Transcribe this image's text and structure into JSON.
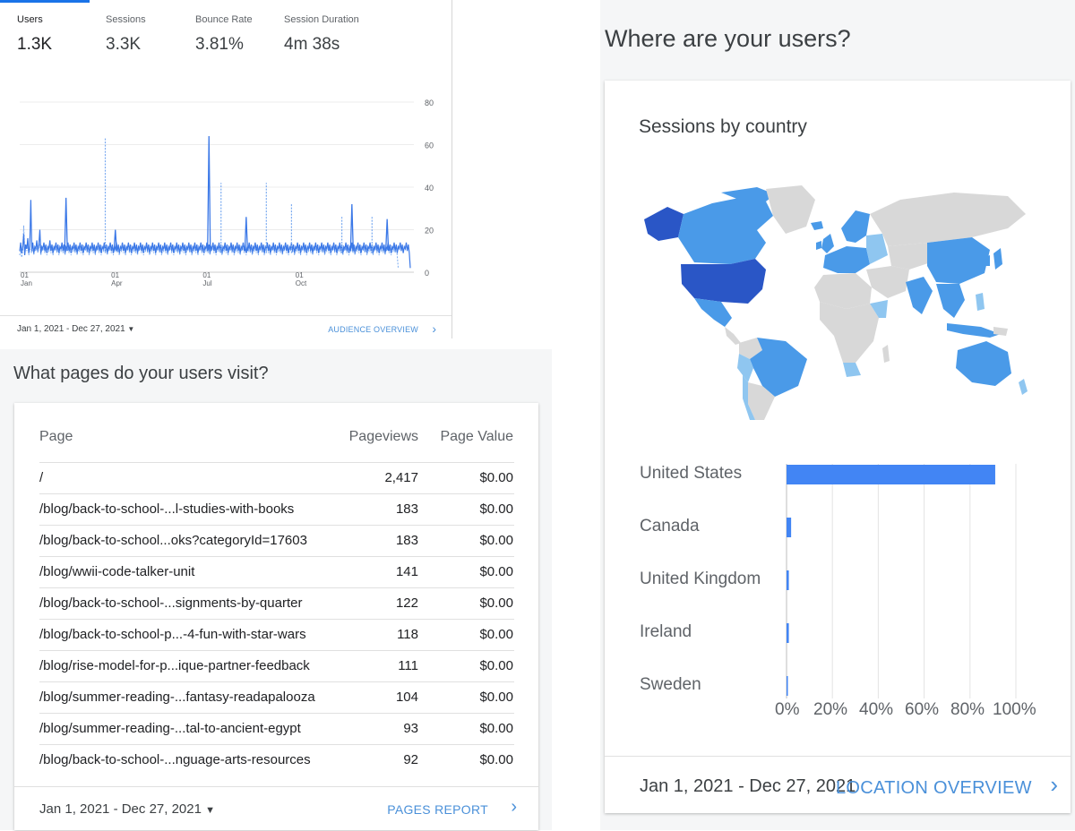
{
  "audience": {
    "metrics": [
      {
        "label": "Users",
        "value": "1.3K"
      },
      {
        "label": "Sessions",
        "value": "3.3K"
      },
      {
        "label": "Bounce Rate",
        "value": "3.81%"
      },
      {
        "label": "Session Duration",
        "value": "4m 38s"
      }
    ],
    "date_range": "Jan 1, 2021 - Dec 27, 2021",
    "link": "AUDIENCE OVERVIEW"
  },
  "pages": {
    "heading": "What pages do your users visit?",
    "columns": [
      "Page",
      "Pageviews",
      "Page Value"
    ],
    "rows": [
      {
        "page": "/",
        "pageviews": "2,417",
        "value": "$0.00"
      },
      {
        "page": "/blog/back-to-school-...l-studies-with-books",
        "pageviews": "183",
        "value": "$0.00"
      },
      {
        "page": "/blog/back-to-school...oks?categoryId=17603",
        "pageviews": "183",
        "value": "$0.00"
      },
      {
        "page": "/blog/wwii-code-talker-unit",
        "pageviews": "141",
        "value": "$0.00"
      },
      {
        "page": "/blog/back-to-school-...signments-by-quarter",
        "pageviews": "122",
        "value": "$0.00"
      },
      {
        "page": "/blog/back-to-school-p...-4-fun-with-star-wars",
        "pageviews": "118",
        "value": "$0.00"
      },
      {
        "page": "/blog/rise-model-for-p...ique-partner-feedback",
        "pageviews": "111",
        "value": "$0.00"
      },
      {
        "page": "/blog/summer-reading-...fantasy-readapalooza",
        "pageviews": "104",
        "value": "$0.00"
      },
      {
        "page": "/blog/summer-reading-...tal-to-ancient-egypt",
        "pageviews": "93",
        "value": "$0.00"
      },
      {
        "page": "/blog/back-to-school-...nguage-arts-resources",
        "pageviews": "92",
        "value": "$0.00"
      }
    ],
    "date_range": "Jan 1, 2021 - Dec 27, 2021",
    "link": "PAGES REPORT"
  },
  "location": {
    "heading": "Where are your users?",
    "card_title": "Sessions by country",
    "date_range": "Jan 1, 2021 - Dec 27, 2021",
    "link": "LOCATION OVERVIEW"
  },
  "colors": {
    "accent": "#1a73e8",
    "link": "#4a90d9",
    "bar": "#4285f4",
    "map_dark": "#2a56c6",
    "map_mid": "#4a9ae8",
    "map_light": "#8fc6f0",
    "map_none": "#d8d8d8"
  },
  "chart_data": [
    {
      "type": "line",
      "series": [
        {
          "values": [
            10,
            14,
            9,
            12,
            18,
            8,
            13,
            11,
            16,
            9,
            12,
            34,
            10,
            14,
            9,
            12,
            11,
            15,
            10,
            13,
            20,
            9,
            12,
            11,
            14,
            10,
            13,
            9,
            12,
            11,
            15,
            10,
            13,
            9,
            12,
            11,
            14,
            10,
            13,
            9,
            12,
            11,
            14,
            10,
            13,
            9,
            12,
            11,
            14,
            10,
            13,
            9,
            12,
            11,
            14,
            10,
            13,
            9,
            12,
            11,
            14,
            10,
            13,
            9,
            12,
            11,
            14,
            10,
            13,
            9,
            12,
            11,
            14,
            10,
            13,
            9,
            12,
            11,
            14,
            10,
            13,
            9,
            12,
            11,
            14,
            10,
            13,
            9,
            12,
            11,
            14,
            10,
            13,
            9,
            12,
            11,
            14,
            10,
            13,
            9,
            12,
            11,
            14,
            10,
            13,
            9,
            12,
            11,
            14,
            10,
            13,
            9,
            12,
            11,
            14,
            10,
            13,
            9,
            12,
            11,
            14,
            10,
            13,
            9,
            12,
            11,
            14,
            10,
            13,
            9,
            12,
            11,
            14,
            10,
            13,
            9,
            12,
            11,
            14,
            10,
            13,
            9,
            12,
            11,
            14,
            10,
            13,
            9,
            12,
            11,
            14,
            10,
            13,
            9,
            12,
            11,
            14,
            10,
            13,
            9,
            12,
            11,
            14,
            10,
            13,
            9,
            12,
            11,
            14,
            10,
            13,
            9,
            12,
            11,
            14,
            10,
            13,
            9,
            12,
            11,
            14,
            10,
            13,
            9,
            12,
            11,
            14,
            10,
            13,
            9,
            12,
            11,
            14,
            10,
            13,
            9,
            12,
            11,
            14,
            10,
            13,
            9,
            12,
            11,
            14,
            10,
            13,
            9,
            12,
            11,
            14,
            10,
            13,
            9,
            12,
            11,
            14,
            10,
            13,
            9,
            12,
            11,
            14,
            10,
            13,
            9,
            12,
            11,
            14,
            10,
            13,
            9,
            12,
            11,
            14,
            10,
            13,
            9,
            12,
            11,
            14,
            10,
            13,
            9,
            12,
            11,
            14,
            10,
            13,
            9,
            12,
            11,
            14,
            10,
            13,
            9,
            12,
            11,
            14,
            10,
            13,
            9,
            12,
            11,
            14,
            10,
            13,
            9,
            12,
            11,
            14,
            10,
            13,
            9,
            12,
            11,
            14,
            10,
            13,
            9,
            12,
            11,
            14,
            10,
            13,
            9,
            12,
            11,
            14,
            10,
            13,
            9,
            12,
            11,
            14,
            10,
            13,
            9,
            12,
            11,
            14,
            10,
            13,
            9,
            12,
            11,
            14,
            10,
            13,
            9,
            12,
            11,
            14,
            10,
            13,
            9,
            12,
            11,
            14,
            10,
            13,
            9,
            12,
            11,
            14,
            10,
            13,
            9,
            12,
            11,
            14,
            10,
            13,
            9,
            12,
            11,
            14,
            10,
            13,
            9,
            12,
            11,
            14,
            10,
            13,
            9,
            12,
            11,
            14,
            10,
            13,
            9,
            12,
            11,
            14,
            10,
            13,
            9,
            12,
            11,
            14,
            10,
            13,
            9,
            12,
            11,
            14,
            10,
            13,
            9,
            12,
            11,
            14,
            10,
            13,
            9,
            12,
            11,
            14,
            10,
            13,
            9,
            12,
            11,
            14,
            10,
            13,
            9,
            2
          ]
        },
        {
          "values": [
            8,
            11,
            7,
            10,
            22,
            9,
            12,
            10,
            14,
            8,
            11,
            10,
            9,
            13,
            8,
            11,
            10,
            14,
            9,
            12,
            13,
            8,
            11,
            10,
            13,
            9,
            12,
            8,
            11,
            10,
            14,
            9,
            12,
            8,
            11,
            10,
            13,
            9,
            12,
            8,
            11,
            10,
            13,
            9,
            12,
            8,
            11,
            10,
            13,
            9,
            12,
            8,
            11,
            10,
            13,
            9,
            12,
            8,
            11,
            10,
            13,
            9,
            12,
            8,
            11,
            10,
            13,
            9,
            12,
            8,
            11,
            10,
            13,
            9,
            12,
            8,
            11,
            10,
            13,
            9,
            12,
            8,
            11,
            10,
            13,
            9,
            12,
            8,
            11,
            10,
            13,
            9,
            12,
            8,
            11,
            10,
            13,
            9,
            12,
            8,
            11,
            10,
            13,
            9,
            12,
            8,
            11,
            10,
            13,
            9,
            12,
            8,
            11,
            10,
            13,
            9,
            12,
            8,
            11,
            10,
            13,
            9,
            12,
            8,
            11,
            10,
            13,
            9,
            12,
            8,
            11,
            10,
            13,
            9,
            12,
            8,
            11,
            10,
            13,
            9,
            12,
            8,
            11,
            10,
            13,
            9,
            12,
            8,
            11,
            10,
            13,
            9,
            12,
            8,
            11,
            10,
            13,
            9,
            12,
            8,
            11,
            10,
            13,
            9,
            12,
            8,
            11,
            10,
            13,
            9,
            12,
            8,
            11,
            10,
            13,
            9,
            12,
            8,
            11,
            10,
            13,
            9,
            12,
            8,
            11,
            10,
            13,
            9,
            12,
            8,
            11,
            10,
            13,
            9,
            12,
            8,
            11,
            10,
            13,
            9,
            12,
            8,
            11,
            10,
            13,
            9,
            12,
            8,
            11,
            10,
            13,
            9,
            12,
            8,
            11,
            10,
            13,
            9,
            12,
            8,
            11,
            10,
            13,
            9,
            12,
            8,
            11,
            10,
            13,
            9,
            12,
            8,
            11,
            10,
            13,
            9,
            12,
            8,
            11,
            10,
            13,
            9,
            12,
            8,
            11,
            10,
            13,
            9,
            12,
            8,
            11,
            10,
            13,
            9,
            12,
            8,
            11,
            10,
            13,
            9,
            12,
            8,
            11,
            10,
            13,
            9,
            12,
            8,
            11,
            10,
            13,
            9,
            12,
            8,
            11,
            10,
            13,
            9,
            12,
            8,
            11,
            10,
            13,
            9,
            12,
            8,
            11,
            10,
            13,
            9,
            12,
            8,
            11,
            10,
            13,
            9,
            12,
            8,
            11,
            10,
            13,
            9,
            12,
            8,
            11,
            10,
            13,
            9,
            12,
            8,
            11,
            10,
            13,
            9,
            12,
            8,
            11,
            10,
            13,
            9,
            12,
            8,
            11,
            10,
            13,
            9,
            12,
            8,
            11,
            10,
            13,
            9,
            12,
            8,
            11,
            10,
            13,
            9,
            12,
            8,
            11,
            10,
            13,
            9,
            12,
            8,
            11,
            10,
            13,
            9,
            12,
            8,
            11,
            10,
            13,
            9,
            12,
            8,
            11,
            10,
            13,
            9,
            12,
            8,
            11,
            10,
            13,
            9,
            12,
            8,
            11,
            10,
            13,
            9,
            12,
            8,
            2
          ]
        }
      ],
      "spikes_solid": [
        [
          46,
          35
        ],
        [
          95,
          20
        ],
        [
          188,
          64
        ],
        [
          225,
          26
        ],
        [
          330,
          32
        ],
        [
          365,
          25
        ]
      ],
      "spikes_dashed": [
        [
          85,
          63
        ],
        [
          200,
          42
        ],
        [
          245,
          42
        ],
        [
          270,
          32
        ],
        [
          320,
          26
        ],
        [
          350,
          26
        ]
      ],
      "yticks": [
        0,
        20,
        40,
        60,
        80
      ],
      "ylim": [
        0,
        80
      ],
      "xticks": [
        {
          "day": "01",
          "month": "Jan"
        },
        {
          "day": "01",
          "month": "Apr"
        },
        {
          "day": "01",
          "month": "Jul"
        },
        {
          "day": "01",
          "month": "Oct"
        }
      ],
      "grid": true
    },
    {
      "type": "bar",
      "orientation": "horizontal",
      "categories": [
        "United States",
        "Canada",
        "United Kingdom",
        "Ireland",
        "Sweden"
      ],
      "values": [
        91,
        2,
        1,
        1,
        0.3
      ],
      "xticks": [
        "0%",
        "20%",
        "40%",
        "60%",
        "80%",
        "100%"
      ],
      "xlim": [
        0,
        100
      ],
      "grid": true
    }
  ]
}
